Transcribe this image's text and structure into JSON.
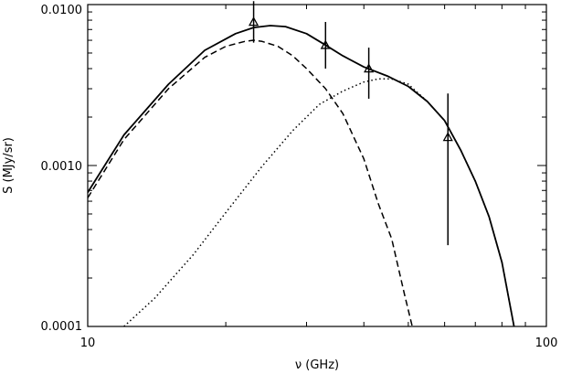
{
  "chart_data": {
    "type": "line",
    "xlabel": "ν (GHz)",
    "ylabel": "S (MJy/sr)",
    "xscale": "log",
    "yscale": "log",
    "xlim": [
      10,
      100
    ],
    "ylim": [
      0.0001,
      0.01
    ],
    "xticks": [
      {
        "value": 10,
        "label": "10"
      },
      {
        "value": 100,
        "label": "100"
      }
    ],
    "yticks": [
      {
        "value": 0.0001,
        "label": "0.0001"
      },
      {
        "value": 0.001,
        "label": "0.0010"
      },
      {
        "value": 0.01,
        "label": "0.0100"
      }
    ],
    "grid": false,
    "legend": "none",
    "series": [
      {
        "style": "solid",
        "x": [
          10,
          12,
          15,
          18,
          21,
          23,
          25,
          27,
          30,
          33,
          36,
          40,
          45,
          50,
          55,
          60,
          65,
          70,
          75,
          80,
          85
        ],
        "y": [
          0.00068,
          0.00155,
          0.0032,
          0.0052,
          0.0066,
          0.0072,
          0.0074,
          0.0073,
          0.0066,
          0.0056,
          0.0048,
          0.0041,
          0.0036,
          0.0031,
          0.0025,
          0.0019,
          0.00125,
          0.0008,
          0.00048,
          0.00025,
          0.0001
        ]
      },
      {
        "style": "dashed",
        "x": [
          10,
          12,
          15,
          18,
          20,
          22,
          23,
          24,
          26,
          28,
          30,
          33,
          36,
          40,
          43,
          46,
          49,
          51
        ],
        "y": [
          0.00063,
          0.00145,
          0.003,
          0.0047,
          0.0055,
          0.0059,
          0.006,
          0.0059,
          0.0055,
          0.0048,
          0.004,
          0.003,
          0.0021,
          0.0011,
          0.00058,
          0.00035,
          0.00016,
          0.0001
        ]
      },
      {
        "style": "dotted",
        "x": [
          12,
          14,
          17,
          20,
          24,
          28,
          32,
          36,
          40,
          43,
          46,
          50,
          55,
          60,
          65,
          70,
          75,
          80,
          85
        ],
        "y": [
          0.0001,
          0.00015,
          0.00028,
          0.00051,
          0.00099,
          0.00165,
          0.0024,
          0.0029,
          0.0033,
          0.00345,
          0.00345,
          0.0032,
          0.0025,
          0.0019,
          0.00125,
          0.0008,
          0.00048,
          0.00025,
          0.0001
        ]
      }
    ],
    "points": [
      {
        "x": 23,
        "y": 0.0078,
        "ylow": 0.0058,
        "yhigh": 0.0105
      },
      {
        "x": 33,
        "y": 0.0056,
        "ylow": 0.004,
        "yhigh": 0.0078
      },
      {
        "x": 41,
        "y": 0.004,
        "ylow": 0.0026,
        "yhigh": 0.0054
      },
      {
        "x": 61,
        "y": 0.0015,
        "ylow": 0.00032,
        "yhigh": 0.0028
      }
    ]
  }
}
